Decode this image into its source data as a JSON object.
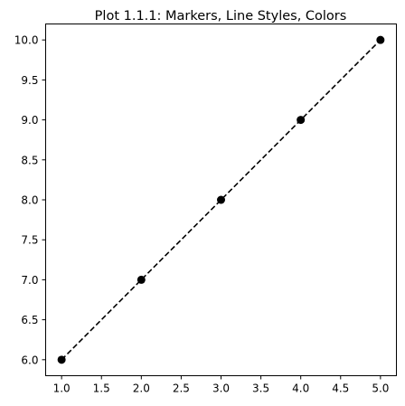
{
  "chart_data": {
    "type": "line",
    "title": "Plot 1.1.1: Markers, Line Styles, Colors",
    "xlabel": "",
    "ylabel": "",
    "x": [
      1,
      2,
      3,
      4,
      5
    ],
    "series": [
      {
        "values": [
          6,
          7,
          8,
          9,
          10
        ],
        "color": "#000000",
        "line_style": "dashed",
        "marker": "circle"
      }
    ],
    "xlim": [
      0.8,
      5.2
    ],
    "ylim": [
      5.8,
      10.2
    ],
    "xticks": [
      1.0,
      1.5,
      2.0,
      2.5,
      3.0,
      3.5,
      4.0,
      4.5,
      5.0
    ],
    "yticks": [
      6.0,
      6.5,
      7.0,
      7.5,
      8.0,
      8.5,
      9.0,
      9.5,
      10.0
    ],
    "xtick_labels": [
      "1.0",
      "1.5",
      "2.0",
      "2.5",
      "3.0",
      "3.5",
      "4.0",
      "4.5",
      "5.0"
    ],
    "ytick_labels": [
      "6.0",
      "6.5",
      "7.0",
      "7.5",
      "8.0",
      "8.5",
      "9.0",
      "9.5",
      "10.0"
    ],
    "grid": false,
    "legend": "none"
  }
}
